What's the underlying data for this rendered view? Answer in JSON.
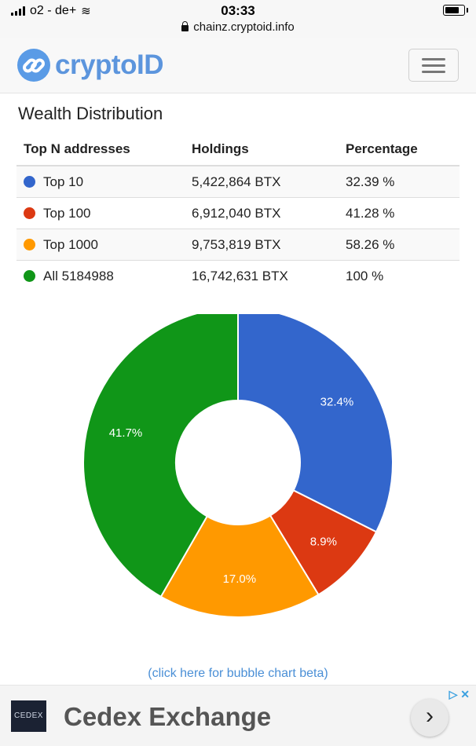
{
  "status_bar": {
    "carrier": "o2 - de+",
    "time": "03:33",
    "url": "chainz.cryptoid.info"
  },
  "navbar": {
    "brand": "cryptoID"
  },
  "page": {
    "title": "Wealth Distribution"
  },
  "table": {
    "headers": [
      "Top N addresses",
      "Holdings",
      "Percentage"
    ],
    "rows": [
      {
        "label": "Top 10",
        "holdings": "5,422,864 BTX",
        "percentage": "32.39 %",
        "color": "#3366cc"
      },
      {
        "label": "Top 100",
        "holdings": "6,912,040 BTX",
        "percentage": "41.28 %",
        "color": "#dc3912"
      },
      {
        "label": "Top 1000",
        "holdings": "9,753,819 BTX",
        "percentage": "58.26 %",
        "color": "#ff9900"
      },
      {
        "label": "All 5184988",
        "holdings": "16,742,631 BTX",
        "percentage": "100 %",
        "color": "#109618"
      }
    ]
  },
  "chart_data": {
    "type": "pie",
    "donut": true,
    "slices": [
      {
        "value": 32.4,
        "label": "32.4%",
        "color": "#3366cc"
      },
      {
        "value": 8.9,
        "label": "8.9%",
        "color": "#dc3912"
      },
      {
        "value": 17.0,
        "label": "17.0%",
        "color": "#ff9900"
      },
      {
        "value": 41.7,
        "label": "41.7%",
        "color": "#109618"
      }
    ]
  },
  "links": {
    "bubble_chart": "(click here for bubble chart beta)"
  },
  "ad": {
    "logo_text": "CEDEX",
    "title": "Cedex Exchange",
    "arrow": "›",
    "choices": "▷ ✕"
  }
}
